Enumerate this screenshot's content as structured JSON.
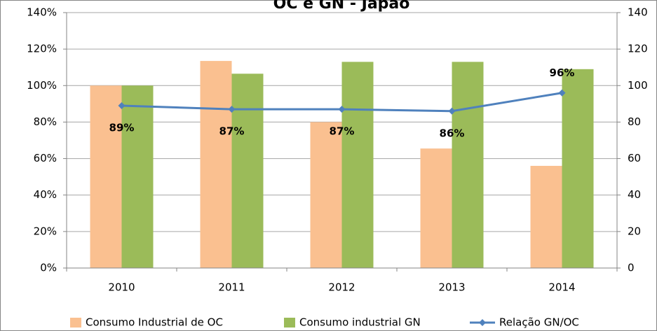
{
  "chart_data": {
    "type": "bar-line",
    "title": "OC e GN - Japão",
    "categories": [
      "2010",
      "2011",
      "2012",
      "2013",
      "2014"
    ],
    "series": [
      {
        "name": "Consumo Industrial de OC",
        "color": "#fac090",
        "type": "bar",
        "axis": "y2",
        "values": [
          100,
          113.5,
          80,
          65.5,
          56
        ]
      },
      {
        "name": "Consumo industrial GN",
        "color": "#9bbb59",
        "type": "bar",
        "axis": "y2",
        "values": [
          100,
          106.5,
          113,
          113,
          109
        ]
      },
      {
        "name": "Relação GN/OC",
        "color": "#4f81bd",
        "type": "line",
        "axis": "y",
        "values": [
          89,
          87,
          87,
          86,
          96
        ],
        "value_labels": [
          "89%",
          "87%",
          "87%",
          "86%",
          "96%"
        ]
      }
    ],
    "ylim": [
      0,
      140
    ],
    "yticks": [
      {
        "value": 0,
        "label": "0%"
      },
      {
        "value": 20,
        "label": "20%"
      },
      {
        "value": 40,
        "label": "40%"
      },
      {
        "value": 60,
        "label": "60%"
      },
      {
        "value": 80,
        "label": "80%"
      },
      {
        "value": 100,
        "label": "100%"
      },
      {
        "value": 120,
        "label": "120%"
      },
      {
        "value": 140,
        "label": "140%"
      }
    ],
    "y2lim": [
      0,
      140
    ],
    "y2ticks": [
      0,
      20,
      40,
      60,
      80,
      100,
      120,
      140
    ],
    "grid": true,
    "legend": "bottom"
  }
}
